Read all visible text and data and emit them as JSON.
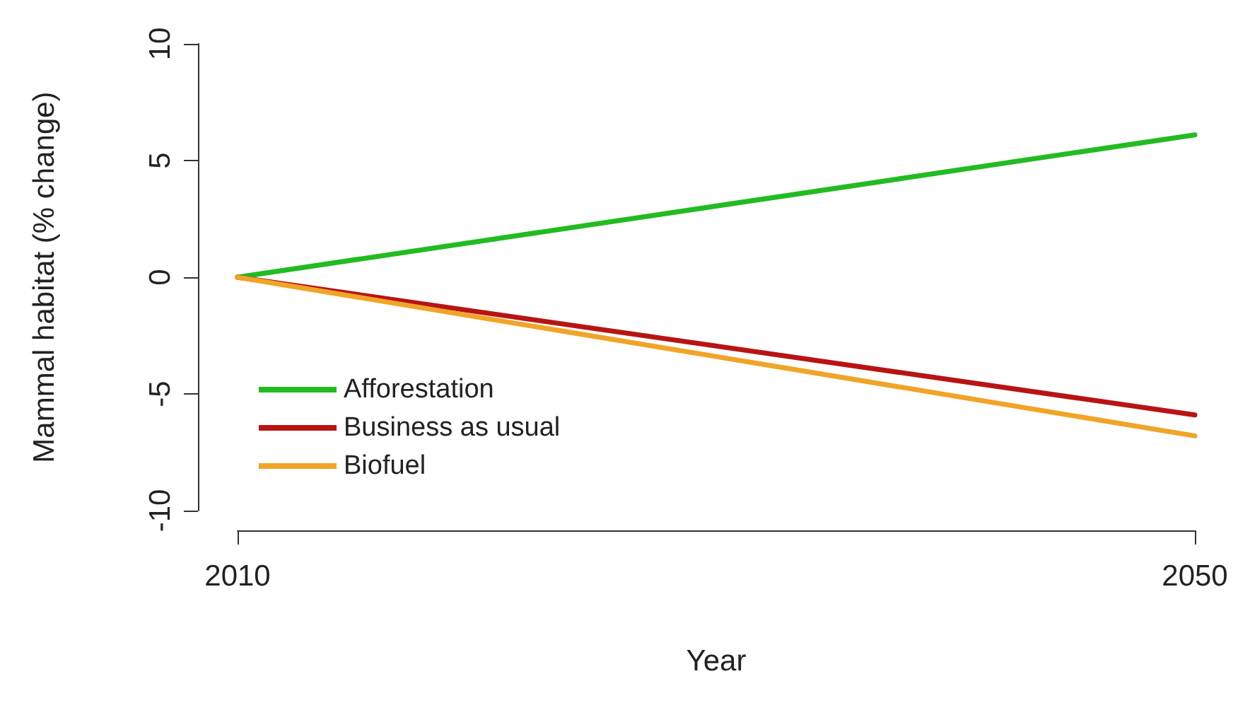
{
  "chart_data": {
    "type": "line",
    "xlabel": "Year",
    "ylabel": "Mammal habitat (% change)",
    "x": [
      2010,
      2050
    ],
    "xlim": [
      2010,
      2050
    ],
    "xticks": [
      2010,
      2050
    ],
    "ylim": [
      -10,
      10
    ],
    "yticks": [
      -10,
      -5,
      0,
      5,
      10
    ],
    "legend": "bottom left",
    "grid": false,
    "marker": "none",
    "line_style": "solid",
    "series": [
      {
        "name": "Afforestation",
        "color": "#22bb22",
        "values": [
          0,
          6.1
        ]
      },
      {
        "name": "Business as usual",
        "color": "#b81414",
        "values": [
          0,
          -5.9
        ]
      },
      {
        "name": "Biofuel",
        "color": "#f0a428",
        "values": [
          0,
          -6.8
        ]
      }
    ]
  }
}
